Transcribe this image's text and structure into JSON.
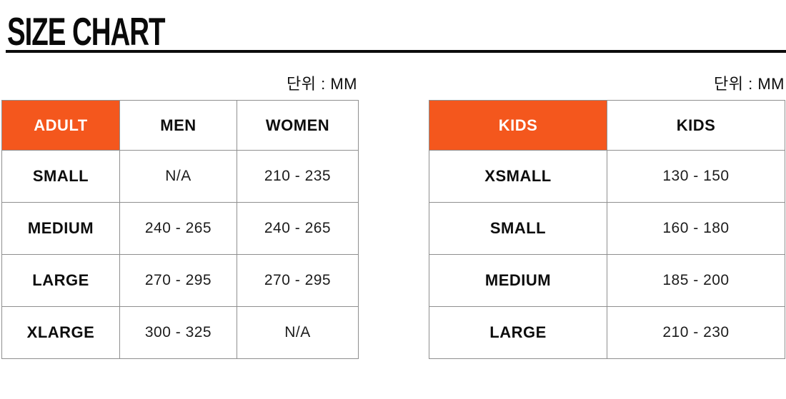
{
  "page": {
    "title": "SIZE CHART"
  },
  "colors": {
    "accent_orange": "#f4571d",
    "accent_header_text": "#ffffff",
    "table_border": "#8f8f8f",
    "title_text": "#0a0a0a"
  },
  "tables": [
    {
      "name": "adult",
      "unit_label": "단위 : MM",
      "columns": [
        "ADULT",
        "MEN",
        "WOMEN"
      ],
      "rows": [
        {
          "label": "SMALL",
          "values": [
            "N/A",
            "210 - 235"
          ]
        },
        {
          "label": "MEDIUM",
          "values": [
            "240 - 265",
            "240 - 265"
          ]
        },
        {
          "label": "LARGE",
          "values": [
            "270 - 295",
            "270 - 295"
          ]
        },
        {
          "label": "XLARGE",
          "values": [
            "300 - 325",
            "N/A"
          ]
        }
      ]
    },
    {
      "name": "kids",
      "unit_label": "단위 : MM",
      "columns": [
        "KIDS",
        "KIDS"
      ],
      "rows": [
        {
          "label": "XSMALL",
          "values": [
            "130 - 150"
          ]
        },
        {
          "label": "SMALL",
          "values": [
            "160 - 180"
          ]
        },
        {
          "label": "MEDIUM",
          "values": [
            "185 - 200"
          ]
        },
        {
          "label": "LARGE",
          "values": [
            "210 - 230"
          ]
        }
      ]
    }
  ]
}
